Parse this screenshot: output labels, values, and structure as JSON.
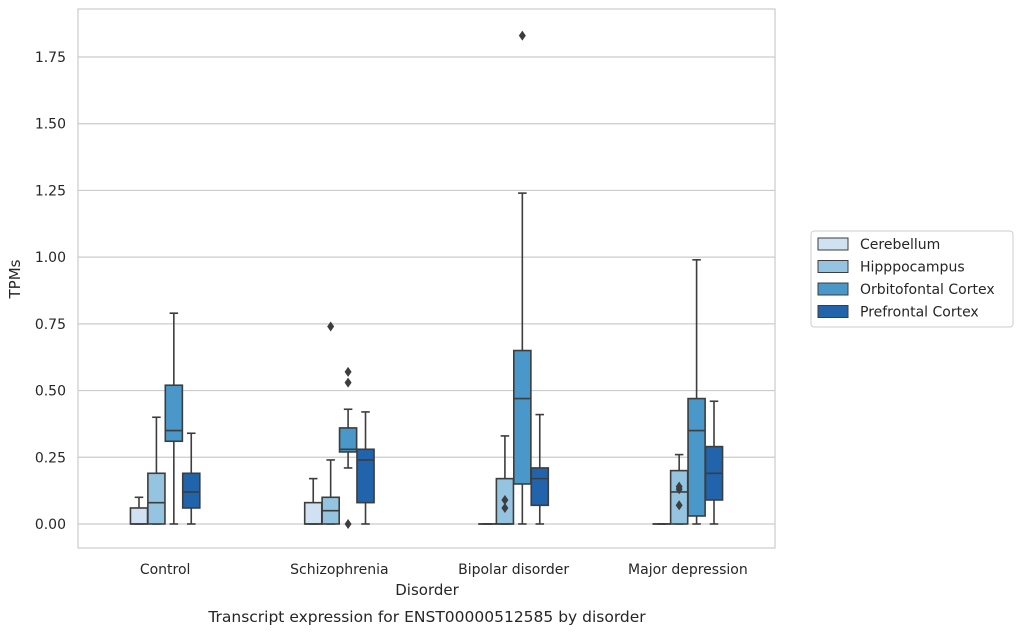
{
  "chart_data": {
    "type": "box",
    "caption": "Transcript expression for ENST00000512585 by disorder",
    "xlabel": "Disorder",
    "ylabel": "TPMs",
    "ylim": [
      -0.09,
      1.93
    ],
    "yticks": [
      "0.00",
      "0.25",
      "0.50",
      "0.75",
      "1.00",
      "1.25",
      "1.50",
      "1.75"
    ],
    "grid": true,
    "legend_position": "right",
    "categories": [
      "Control",
      "Schizophrenia",
      "Bipolar disorder",
      "Major depression"
    ],
    "series": [
      {
        "name": "Cerebellum",
        "color": "#d0e1f2",
        "boxes": [
          {
            "whislo": 0.0,
            "q1": 0.0,
            "med": 0.0,
            "q3": 0.06,
            "whishi": 0.1,
            "fliers": []
          },
          {
            "whislo": 0.0,
            "q1": 0.0,
            "med": 0.0,
            "q3": 0.08,
            "whishi": 0.17,
            "fliers": []
          },
          {
            "whislo": 0.0,
            "q1": 0.0,
            "med": 0.0,
            "q3": 0.0,
            "whishi": 0.0,
            "fliers": []
          },
          {
            "whislo": 0.0,
            "q1": 0.0,
            "med": 0.0,
            "q3": 0.0,
            "whishi": 0.0,
            "fliers": []
          }
        ]
      },
      {
        "name": "Hipppocampus",
        "color": "#94c4df",
        "boxes": [
          {
            "whislo": 0.0,
            "q1": 0.0,
            "med": 0.08,
            "q3": 0.19,
            "whishi": 0.4,
            "fliers": []
          },
          {
            "whislo": 0.0,
            "q1": 0.0,
            "med": 0.05,
            "q3": 0.1,
            "whishi": 0.24,
            "fliers": [
              0.74
            ]
          },
          {
            "whislo": 0.0,
            "q1": 0.0,
            "med": 0.0,
            "q3": 0.17,
            "whishi": 0.33,
            "fliers": [
              0.06,
              0.09
            ]
          },
          {
            "whislo": 0.0,
            "q1": 0.0,
            "med": 0.12,
            "q3": 0.2,
            "whishi": 0.26,
            "fliers": [
              0.07,
              0.13,
              0.14
            ]
          }
        ]
      },
      {
        "name": "Orbitofontal Cortex",
        "color": "#4a98c9",
        "boxes": [
          {
            "whislo": 0.0,
            "q1": 0.31,
            "med": 0.35,
            "q3": 0.52,
            "whishi": 0.79,
            "fliers": []
          },
          {
            "whislo": 0.21,
            "q1": 0.27,
            "med": 0.28,
            "q3": 0.36,
            "whishi": 0.43,
            "fliers": [
              0.0,
              0.53,
              0.57
            ]
          },
          {
            "whislo": 0.0,
            "q1": 0.15,
            "med": 0.47,
            "q3": 0.65,
            "whishi": 1.24,
            "fliers": [
              1.83
            ]
          },
          {
            "whislo": 0.0,
            "q1": 0.03,
            "med": 0.35,
            "q3": 0.47,
            "whishi": 0.99,
            "fliers": []
          }
        ]
      },
      {
        "name": "Prefrontal Cortex",
        "color": "#2164ab",
        "boxes": [
          {
            "whislo": 0.0,
            "q1": 0.06,
            "med": 0.12,
            "q3": 0.19,
            "whishi": 0.34,
            "fliers": []
          },
          {
            "whislo": 0.0,
            "q1": 0.08,
            "med": 0.24,
            "q3": 0.28,
            "whishi": 0.42,
            "fliers": []
          },
          {
            "whislo": 0.0,
            "q1": 0.07,
            "med": 0.17,
            "q3": 0.21,
            "whishi": 0.41,
            "fliers": []
          },
          {
            "whislo": 0.0,
            "q1": 0.09,
            "med": 0.19,
            "q3": 0.29,
            "whishi": 0.46,
            "fliers": []
          }
        ]
      }
    ]
  }
}
